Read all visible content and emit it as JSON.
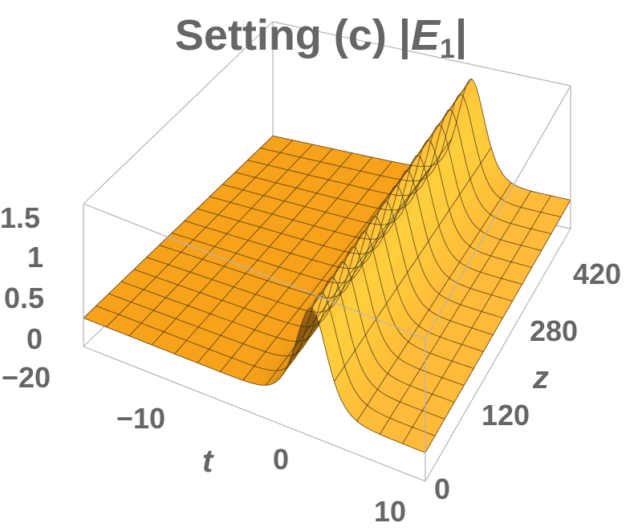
{
  "chart_data": {
    "type": "surface3d",
    "title": {
      "prefix": "Setting (c) |",
      "var": "E",
      "sub": "1",
      "suffix": "|"
    },
    "xlabel": "t",
    "ylabel": "z",
    "zlabel": "",
    "xlim": [
      -20,
      10
    ],
    "ylim": [
      0,
      420
    ],
    "zlim": [
      0,
      1.5
    ],
    "x_ticks": [
      "-20",
      "-10",
      "0",
      "10"
    ],
    "y_ticks": [
      "0",
      "120",
      "280",
      "420"
    ],
    "z_ticks": [
      "0",
      "0.5",
      "1",
      "1.5"
    ],
    "function": "sech pulse |E1|(t,z) = baseline + peak·sech²((t - t0)/w)",
    "baseline": 0.3,
    "peak_height": 1.35,
    "peak_center_t": 0,
    "peak_width": 1.8,
    "mesh": {
      "t_lines": 15,
      "z_lines": 15
    },
    "colors": {
      "surface_base": "#f7a21b",
      "surface_light": "#ffc04a",
      "surface_dark": "#b86a00",
      "mesh": "#3a2a10",
      "box": "#b4b4b4",
      "text": "#666666"
    }
  }
}
